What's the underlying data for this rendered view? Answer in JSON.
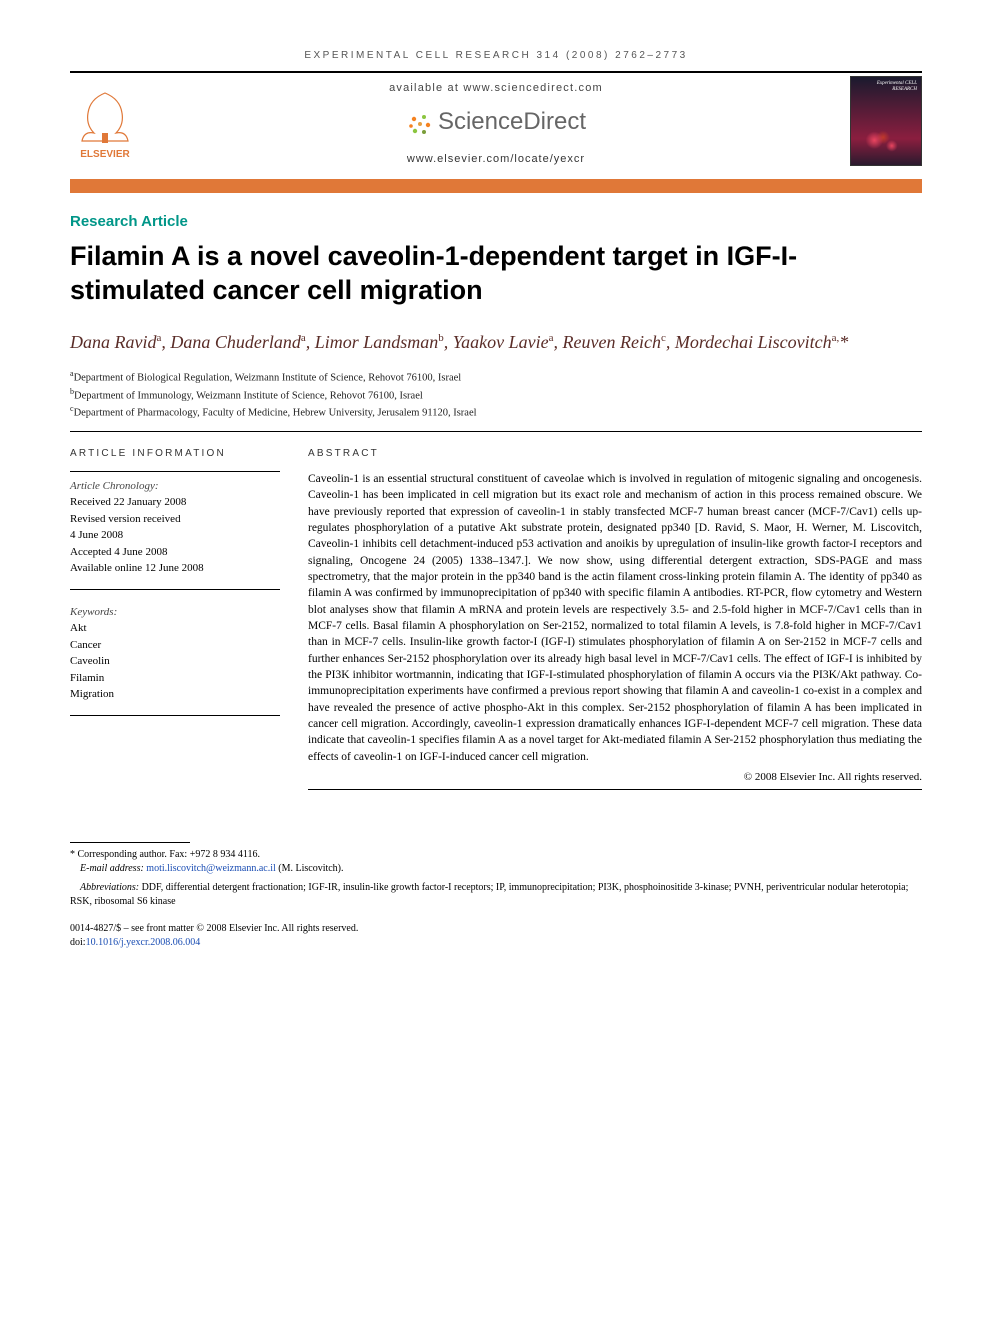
{
  "running_head": "EXPERIMENTAL CELL RESEARCH 314 (2008) 2762–2773",
  "header": {
    "avail_text": "available at www.sciencedirect.com",
    "sd_name": "ScienceDirect",
    "journal_url": "www.elsevier.com/locate/yexcr",
    "elsevier_label": "ELSEVIER",
    "thumb_title": "Experimental CELL RESEARCH"
  },
  "section_label": "Research Article",
  "title": "Filamin A is a novel caveolin-1-dependent target in IGF-I-stimulated cancer cell migration",
  "authors_html": "Dana Ravid<sup>a</sup>, Dana Chuderland<sup>a</sup>, Limor Landsman<sup>b</sup>, Yaakov Lavie<sup>a</sup>, Reuven Reich<sup>c</sup>, Mordechai Liscovitch<sup>a,</sup>*",
  "affiliations": [
    {
      "sup": "a",
      "text": "Department of Biological Regulation, Weizmann Institute of Science, Rehovot 76100, Israel"
    },
    {
      "sup": "b",
      "text": "Department of Immunology, Weizmann Institute of Science, Rehovot 76100, Israel"
    },
    {
      "sup": "c",
      "text": "Department of Pharmacology, Faculty of Medicine, Hebrew University, Jerusalem 91120, Israel"
    }
  ],
  "article_info": {
    "heading": "ARTICLE INFORMATION",
    "chronology_label": "Article Chronology:",
    "received": "Received 22 January 2008",
    "revised_label": "Revised version received",
    "revised_date": "4 June 2008",
    "accepted": "Accepted 4 June 2008",
    "online": "Available online 12 June 2008",
    "keywords_label": "Keywords:",
    "keywords": [
      "Akt",
      "Cancer",
      "Caveolin",
      "Filamin",
      "Migration"
    ]
  },
  "abstract": {
    "heading": "ABSTRACT",
    "text": "Caveolin-1 is an essential structural constituent of caveolae which is involved in regulation of mitogenic signaling and oncogenesis. Caveolin-1 has been implicated in cell migration but its exact role and mechanism of action in this process remained obscure. We have previously reported that expression of caveolin-1 in stably transfected MCF-7 human breast cancer (MCF-7/Cav1) cells up-regulates phosphorylation of a putative Akt substrate protein, designated pp340 [D. Ravid, S. Maor, H. Werner, M. Liscovitch, Caveolin-1 inhibits cell detachment-induced p53 activation and anoikis by upregulation of insulin-like growth factor-I receptors and signaling, Oncogene 24 (2005) 1338–1347.]. We now show, using differential detergent extraction, SDS-PAGE and mass spectrometry, that the major protein in the pp340 band is the actin filament cross-linking protein filamin A. The identity of pp340 as filamin A was confirmed by immunoprecipitation of pp340 with specific filamin A antibodies. RT-PCR, flow cytometry and Western blot analyses show that filamin A mRNA and protein levels are respectively 3.5- and 2.5-fold higher in MCF-7/Cav1 cells than in MCF-7 cells. Basal filamin A phosphorylation on Ser-2152, normalized to total filamin A levels, is 7.8-fold higher in MCF-7/Cav1 than in MCF-7 cells. Insulin-like growth factor-I (IGF-I) stimulates phosphorylation of filamin A on Ser-2152 in MCF-7 cells and further enhances Ser-2152 phosphorylation over its already high basal level in MCF-7/Cav1 cells. The effect of IGF-I is inhibited by the PI3K inhibitor wortmannin, indicating that IGF-I-stimulated phosphorylation of filamin A occurs via the PI3K/Akt pathway. Co-immunoprecipitation experiments have confirmed a previous report showing that filamin A and caveolin-1 co-exist in a complex and have revealed the presence of active phospho-Akt in this complex. Ser-2152 phosphorylation of filamin A has been implicated in cancer cell migration. Accordingly, caveolin-1 expression dramatically enhances IGF-I-dependent MCF-7 cell migration. These data indicate that caveolin-1 specifies filamin A as a novel target for Akt-mediated filamin A Ser-2152 phosphorylation thus mediating the effects of caveolin-1 on IGF-I-induced cancer cell migration.",
    "copyright": "© 2008 Elsevier Inc. All rights reserved."
  },
  "footer": {
    "corresponding": "* Corresponding author. Fax: +972 8 934 4116.",
    "email_label": "E-mail address: ",
    "email": "moti.liscovitch@weizmann.ac.il",
    "email_suffix": " (M. Liscovitch).",
    "abbrev_label": "Abbreviations: ",
    "abbrev": "DDF, differential detergent fractionation; IGF-IR, insulin-like growth factor-I receptors; IP, immunoprecipitation; PI3K, phosphoinositide 3-kinase; PVNH, periventricular nodular heterotopia; RSK, ribosomal S6 kinase",
    "issn_line": "0014-4827/$ – see front matter © 2008 Elsevier Inc. All rights reserved.",
    "doi_label": "doi:",
    "doi": "10.1016/j.yexcr.2008.06.004"
  },
  "colors": {
    "orange_rule": "#e07838",
    "teal": "#009688",
    "author_color": "#5a2d28",
    "link": "#1a4db3"
  }
}
